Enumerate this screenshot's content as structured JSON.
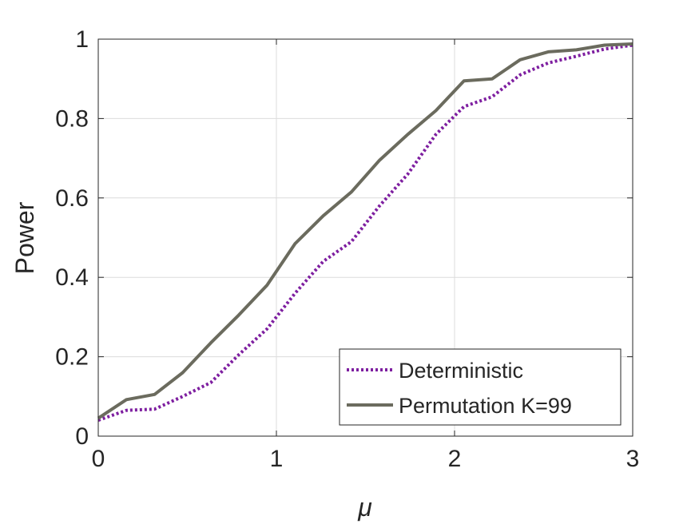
{
  "chart_data": {
    "type": "line",
    "xlabel": "μ",
    "ylabel": "Power",
    "xlim": [
      0,
      3
    ],
    "ylim": [
      0,
      1
    ],
    "xticks": [
      0,
      1,
      2,
      3
    ],
    "yticks": [
      0,
      0.2,
      0.4,
      0.6,
      0.8,
      1
    ],
    "xtick_labels": [
      "0",
      "1",
      "2",
      "3"
    ],
    "ytick_labels": [
      "0",
      "0.2",
      "0.4",
      "0.6",
      "0.8",
      "1"
    ],
    "grid": true,
    "legend_position": "bottom-right",
    "series": [
      {
        "name": "Deterministic",
        "color": "#7e1fa0",
        "style": "dotted",
        "x": [
          0,
          0.158,
          0.316,
          0.474,
          0.632,
          0.789,
          0.947,
          1.105,
          1.263,
          1.421,
          1.579,
          1.737,
          1.895,
          2.053,
          2.211,
          2.368,
          2.526,
          2.684,
          2.842,
          3.0
        ],
        "y": [
          0.04,
          0.065,
          0.068,
          0.1,
          0.135,
          0.205,
          0.27,
          0.36,
          0.44,
          0.49,
          0.58,
          0.66,
          0.76,
          0.83,
          0.855,
          0.91,
          0.94,
          0.957,
          0.975,
          0.985
        ]
      },
      {
        "name": "Permutation K=99",
        "color": "#6b6b5e",
        "style": "solid",
        "x": [
          0,
          0.158,
          0.316,
          0.474,
          0.632,
          0.789,
          0.947,
          1.105,
          1.263,
          1.421,
          1.579,
          1.737,
          1.895,
          2.053,
          2.211,
          2.368,
          2.526,
          2.684,
          2.842,
          3.0
        ],
        "y": [
          0.045,
          0.092,
          0.105,
          0.16,
          0.235,
          0.305,
          0.38,
          0.485,
          0.555,
          0.615,
          0.695,
          0.76,
          0.82,
          0.895,
          0.9,
          0.948,
          0.968,
          0.973,
          0.985,
          0.988
        ]
      }
    ]
  }
}
